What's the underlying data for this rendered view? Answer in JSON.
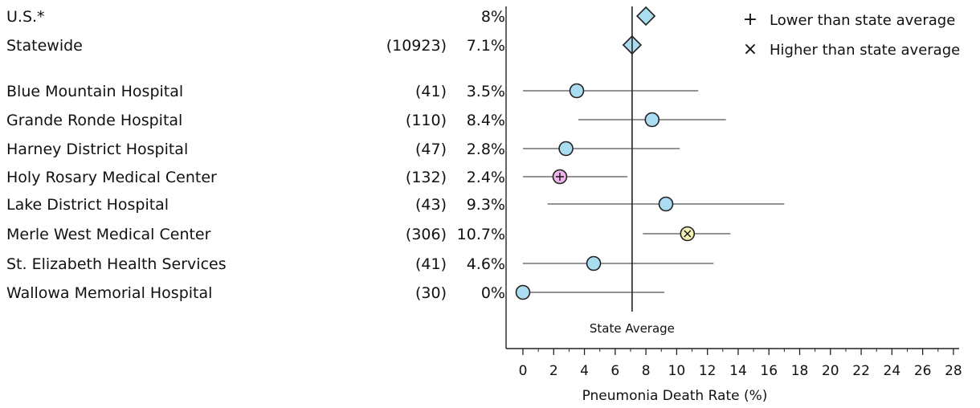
{
  "chart_data": {
    "type": "scatter",
    "xlabel": "Pneumonia Death Rate (%)",
    "xlim": [
      0,
      28
    ],
    "xticks": [
      "0",
      "2",
      "4",
      "6",
      "8",
      "10",
      "12",
      "14",
      "16",
      "18",
      "20",
      "22",
      "24",
      "26",
      "28"
    ],
    "reference_line": {
      "label": "State Average",
      "x": 7.1
    },
    "legend": {
      "placement": "top-right",
      "items": [
        {
          "symbol": "+",
          "label": "Lower than state average"
        },
        {
          "symbol": "×",
          "label": "Higher than state average"
        }
      ]
    },
    "colors": {
      "normal": "#aadcf2",
      "lower": "#f0b4ea",
      "higher": "#f2f0b4",
      "benchmark": "#aadcf2"
    },
    "rows": [
      {
        "label": "U.S.*",
        "count": "",
        "pct": "8%",
        "value": 8.0,
        "marker": "diamond"
      },
      {
        "label": "Statewide",
        "count": "(10923)",
        "pct": "7.1%",
        "value": 7.1,
        "marker": "diamond"
      },
      {
        "label": "Blue Mountain Hospital",
        "count": "(41)",
        "pct": "3.5%",
        "value": 3.5,
        "ci": [
          0.0,
          11.4
        ],
        "marker": "circle"
      },
      {
        "label": "Grande Ronde Hospital",
        "count": "(110)",
        "pct": "8.4%",
        "value": 8.4,
        "ci": [
          3.6,
          13.2
        ],
        "marker": "circle"
      },
      {
        "label": "Harney District Hospital",
        "count": "(47)",
        "pct": "2.8%",
        "value": 2.8,
        "ci": [
          0.0,
          10.2
        ],
        "marker": "circle"
      },
      {
        "label": "Holy Rosary Medical Center",
        "count": "(132)",
        "pct": "2.4%",
        "value": 2.4,
        "ci": [
          0.0,
          6.8
        ],
        "marker": "circle",
        "flag": "lower"
      },
      {
        "label": "Lake District Hospital",
        "count": "(43)",
        "pct": "9.3%",
        "value": 9.3,
        "ci": [
          1.6,
          17.0
        ],
        "marker": "circle"
      },
      {
        "label": "Merle West Medical Center",
        "count": "(306)",
        "pct": "10.7%",
        "value": 10.7,
        "ci": [
          7.8,
          13.5
        ],
        "marker": "circle",
        "flag": "higher"
      },
      {
        "label": "St. Elizabeth Health Services",
        "count": "(41)",
        "pct": "4.6%",
        "value": 4.6,
        "ci": [
          0.0,
          12.4
        ],
        "marker": "circle"
      },
      {
        "label": "Wallowa Memorial Hospital",
        "count": "(30)",
        "pct": "0%",
        "value": 0.0,
        "ci": [
          0.0,
          9.2
        ],
        "marker": "circle"
      }
    ]
  }
}
